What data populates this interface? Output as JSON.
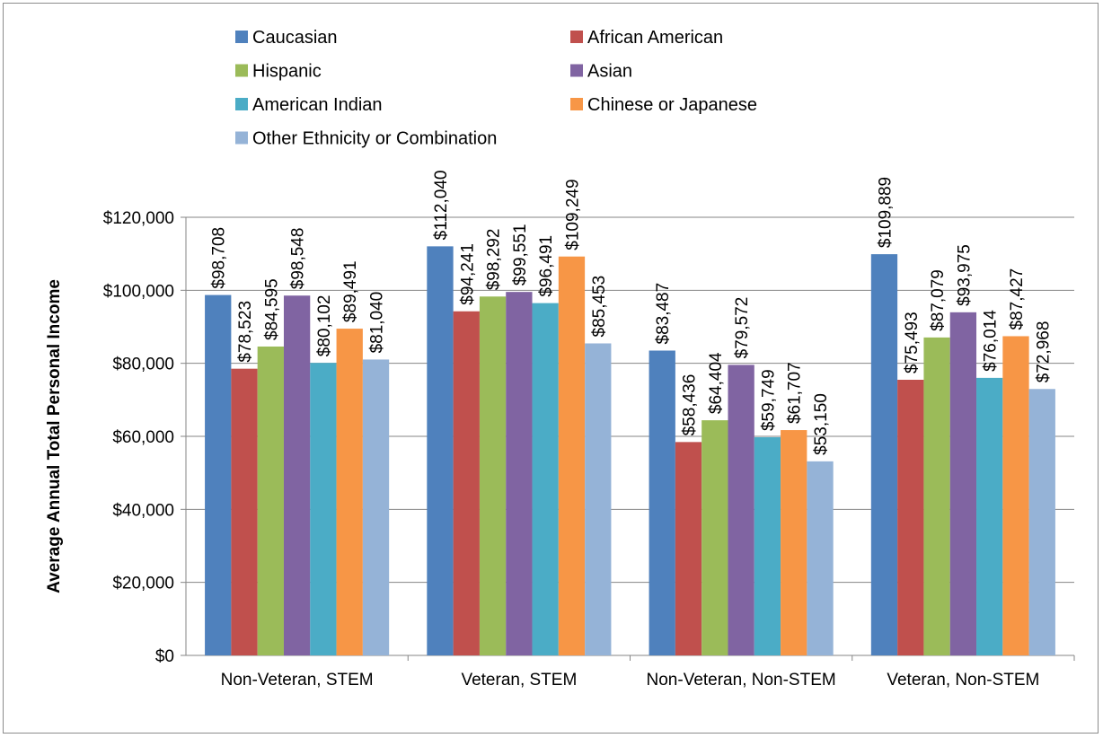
{
  "chart_data": {
    "type": "bar",
    "title": "",
    "xlabel": "",
    "ylabel": "Average Annual Total Personal Income",
    "ylim": [
      0,
      120000
    ],
    "yticks": [
      0,
      20000,
      40000,
      60000,
      80000,
      100000,
      120000
    ],
    "ytick_labels": [
      "$0",
      "$20,000",
      "$40,000",
      "$60,000",
      "$80,000",
      "$100,000",
      "$120,000"
    ],
    "grid": true,
    "legend_position": "top",
    "categories": [
      "Non-Veteran, STEM",
      "Veteran, STEM",
      "Non-Veteran, Non-STEM",
      "Veteran, Non-STEM"
    ],
    "series": [
      {
        "name": "Caucasian",
        "color": "#4F81BD",
        "values": [
          98708,
          112040,
          83487,
          109889
        ],
        "labels": [
          "$98,708",
          "$112,040",
          "$83,487",
          "$109,889"
        ]
      },
      {
        "name": "African American",
        "color": "#C0504D",
        "values": [
          78523,
          94241,
          58436,
          75493
        ],
        "labels": [
          "$78,523",
          "$94,241",
          "$58,436",
          "$75,493"
        ]
      },
      {
        "name": "Hispanic",
        "color": "#9BBB59",
        "values": [
          84595,
          98292,
          64404,
          87079
        ],
        "labels": [
          "$84,595",
          "$98,292",
          "$64,404",
          "$87,079"
        ]
      },
      {
        "name": "Asian",
        "color": "#8064A2",
        "values": [
          98548,
          99551,
          79572,
          93975
        ],
        "labels": [
          "$98,548",
          "$99,551",
          "$79,572",
          "$93,975"
        ]
      },
      {
        "name": "American Indian",
        "color": "#4BACC6",
        "values": [
          80102,
          96491,
          59749,
          76014
        ],
        "labels": [
          "$80,102",
          "$96,491",
          "$59,749",
          "$76,014"
        ]
      },
      {
        "name": "Chinese or Japanese",
        "color": "#F79646",
        "values": [
          89491,
          109249,
          61707,
          87427
        ],
        "labels": [
          "$89,491",
          "$109,249",
          "$61,707",
          "$87,427"
        ]
      },
      {
        "name": "Other Ethnicity or Combination",
        "color": "#95B3D7",
        "values": [
          81040,
          85453,
          53150,
          72968
        ],
        "labels": [
          "$81,040",
          "$85,453",
          "$53,150",
          "$72,968"
        ]
      }
    ]
  }
}
